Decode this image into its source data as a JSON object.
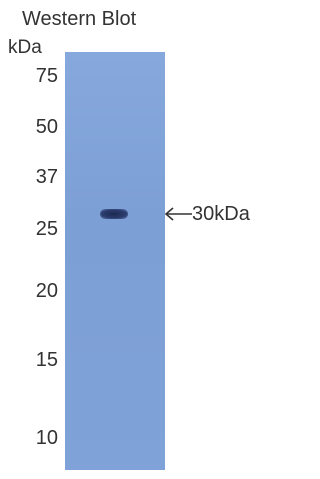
{
  "title": "Western Blot",
  "unit": "kDa",
  "markers": [
    "75",
    "50",
    "37",
    "25",
    "20",
    "15",
    "10"
  ],
  "band_label": "30kDa"
}
